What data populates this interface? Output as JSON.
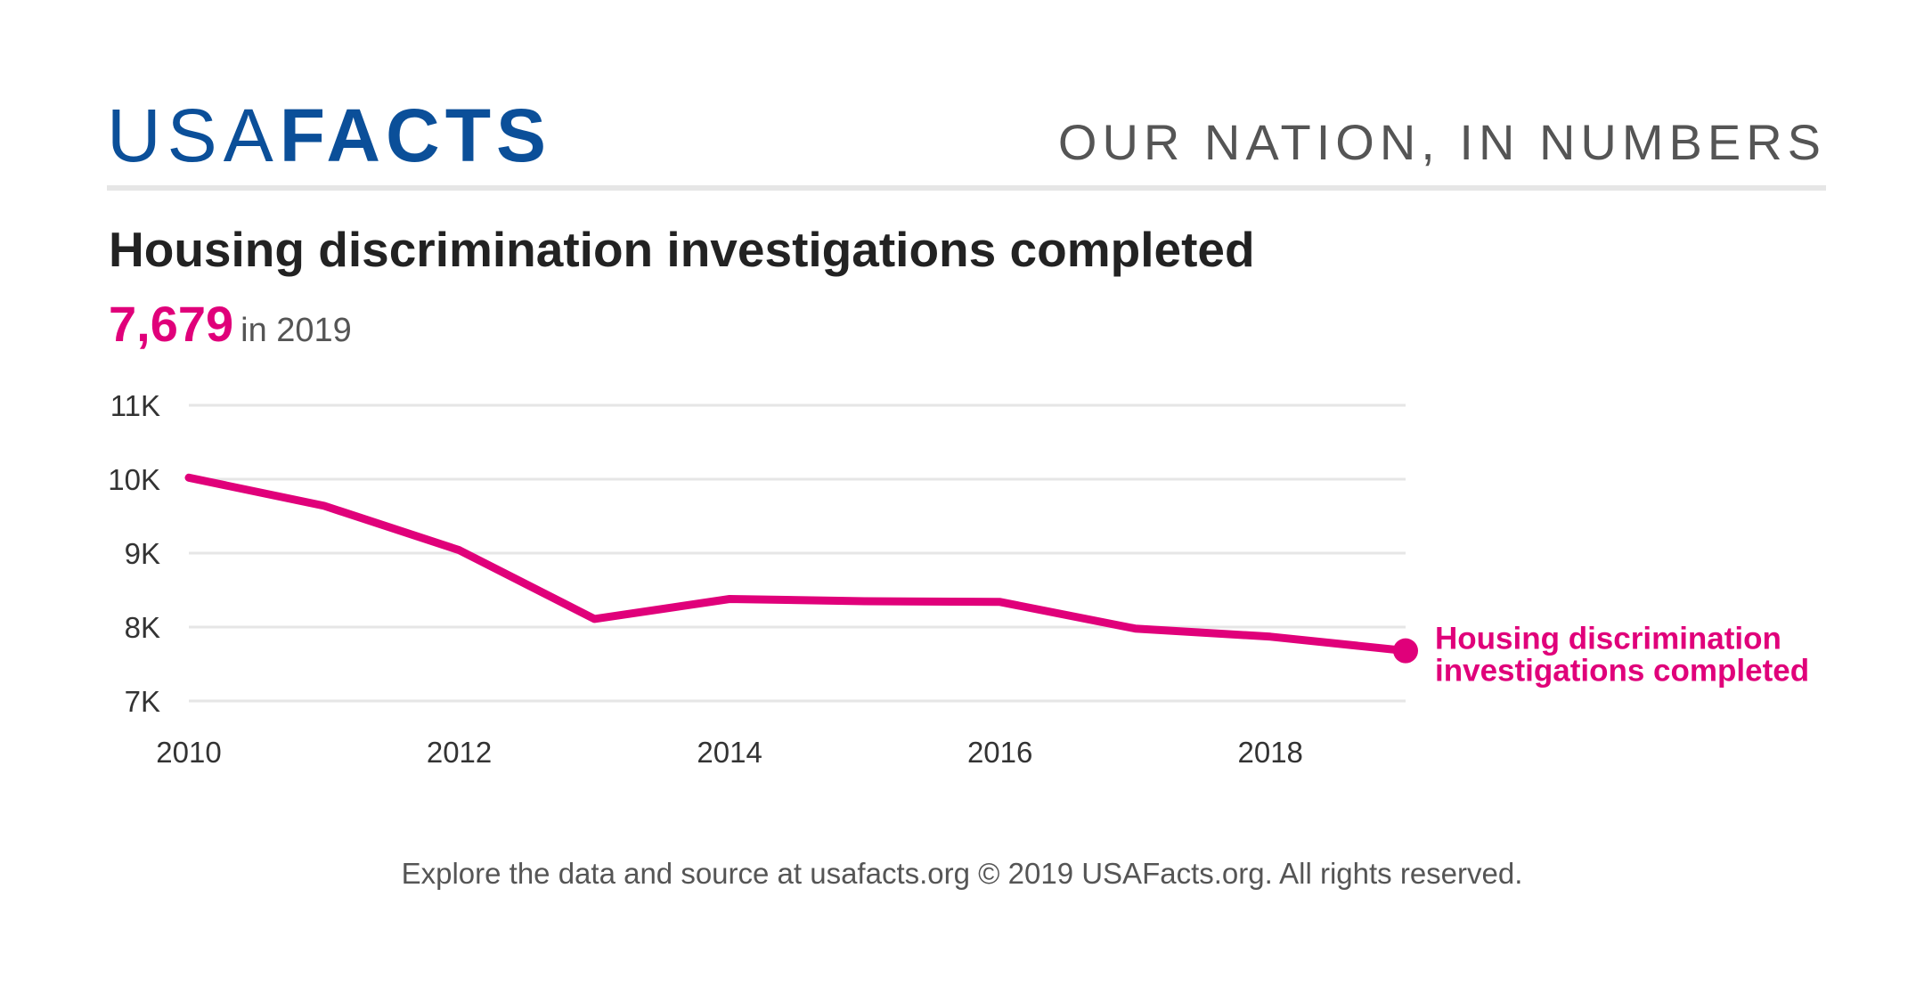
{
  "header": {
    "logo_light": "USA",
    "logo_bold": "FACTS",
    "tagline": "OUR NATION, IN NUMBERS"
  },
  "title": "Housing discrimination investigations completed",
  "headline": {
    "value": "7,679",
    "suffix": "in 2019"
  },
  "footer": "Explore the data and source at usafacts.org © 2019 USAFacts.org. All rights reserved.",
  "colors": {
    "brand": "#0b4f99",
    "accent": "#e0007a",
    "grid": "#e6e6e6"
  },
  "chart_data": {
    "type": "line",
    "x": [
      2010,
      2011,
      2012,
      2013,
      2014,
      2015,
      2016,
      2017,
      2018,
      2019
    ],
    "series": [
      {
        "name": "Housing discrimination investigations completed",
        "label_lines": [
          "Housing discrimination",
          "investigations completed"
        ],
        "values": [
          10020,
          9640,
          9040,
          8110,
          8380,
          8350,
          8340,
          7980,
          7870,
          7679
        ]
      }
    ],
    "y_ticks": [
      7000,
      8000,
      9000,
      10000,
      11000
    ],
    "y_tick_labels": [
      "7K",
      "8K",
      "9K",
      "10K",
      "11K"
    ],
    "x_ticks": [
      2010,
      2012,
      2014,
      2016,
      2018
    ],
    "x_tick_labels": [
      "2010",
      "2012",
      "2014",
      "2016",
      "2018"
    ],
    "ylim": [
      7000,
      11000
    ],
    "xlim": [
      2010,
      2019
    ],
    "grid": true,
    "legend": "end-of-line label"
  }
}
